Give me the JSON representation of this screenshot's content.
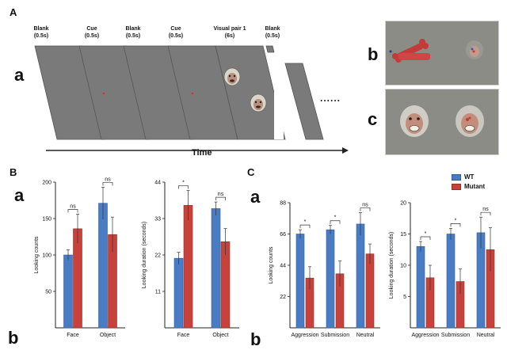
{
  "panelA": {
    "label": "A",
    "sub_a": "a",
    "sub_b": "b",
    "sub_c": "c",
    "steps": [
      {
        "name": "Blank",
        "dur": "(0.5s)"
      },
      {
        "name": "Cue",
        "dur": "(0.5s)"
      },
      {
        "name": "Blank",
        "dur": "(0.5s)"
      },
      {
        "name": "Cue",
        "dur": "(0.5s)"
      },
      {
        "name": "Visual pair 1",
        "dur": "(6s)"
      },
      {
        "name": "Blank",
        "dur": "(0.5s)"
      }
    ],
    "ellipsis": "......",
    "time_label": "Time"
  },
  "panelB": {
    "label": "B",
    "sub_a": "a",
    "sub_b": "b"
  },
  "panelC": {
    "label": "C",
    "sub_a": "a",
    "sub_b": "b"
  },
  "legend": {
    "wt": "WT",
    "mutant": "Mutant"
  },
  "colors": {
    "wt": "#4a7cc4",
    "mutant": "#c8423c",
    "slide": "#7a7a7a"
  },
  "chart_data": [
    {
      "id": "B-counts",
      "type": "bar",
      "ylabel": "Looking counts",
      "ylim": [
        0,
        200
      ],
      "yticks": [
        50,
        100,
        150,
        200
      ],
      "categories": [
        "Face",
        "Object"
      ],
      "series": [
        {
          "name": "WT",
          "values": [
            100,
            171
          ],
          "errors": [
            7,
            22
          ]
        },
        {
          "name": "Mutant",
          "values": [
            136,
            128
          ],
          "errors": [
            20,
            24
          ]
        }
      ],
      "sig": [
        {
          "text": "ns"
        },
        {
          "text": "ns"
        }
      ]
    },
    {
      "id": "B-duration",
      "type": "bar",
      "ylabel": "Looking duration (seconds)",
      "ylim": [
        0,
        44
      ],
      "yticks": [
        11,
        22,
        33,
        44
      ],
      "categories": [
        "Face",
        "Object"
      ],
      "series": [
        {
          "name": "WT",
          "values": [
            21,
            36
          ],
          "errors": [
            1.8,
            2.0
          ]
        },
        {
          "name": "Mutant",
          "values": [
            37,
            26
          ],
          "errors": [
            4.5,
            4.0
          ]
        }
      ],
      "sig": [
        {
          "text": "*"
        },
        {
          "text": "ns"
        }
      ]
    },
    {
      "id": "C-counts",
      "type": "bar",
      "ylabel": "Looking counts",
      "ylim": [
        0,
        88
      ],
      "yticks": [
        22,
        44,
        66,
        88
      ],
      "categories": [
        "Aggression",
        "Submission",
        "Neutral"
      ],
      "series": [
        {
          "name": "WT",
          "values": [
            66,
            69,
            73
          ],
          "errors": [
            3,
            3,
            8
          ]
        },
        {
          "name": "Mutant",
          "values": [
            35,
            38,
            52
          ],
          "errors": [
            8,
            9,
            7
          ]
        }
      ],
      "sig": [
        {
          "text": "*"
        },
        {
          "text": "*"
        },
        {
          "text": "ns"
        }
      ]
    },
    {
      "id": "C-duration",
      "type": "bar",
      "ylabel": "Looking duration (seconds)",
      "ylim": [
        0,
        20
      ],
      "yticks": [
        5,
        10,
        15,
        20
      ],
      "categories": [
        "Aggression",
        "Submission",
        "Neutral"
      ],
      "series": [
        {
          "name": "WT",
          "values": [
            13,
            15,
            15.2
          ],
          "errors": [
            0.8,
            0.9,
            2.5
          ]
        },
        {
          "name": "Mutant",
          "values": [
            8,
            7.4,
            12.5
          ],
          "errors": [
            2.0,
            2.0,
            3.5
          ]
        }
      ],
      "sig": [
        {
          "text": "*"
        },
        {
          "text": "*"
        },
        {
          "text": "ns"
        }
      ]
    }
  ]
}
